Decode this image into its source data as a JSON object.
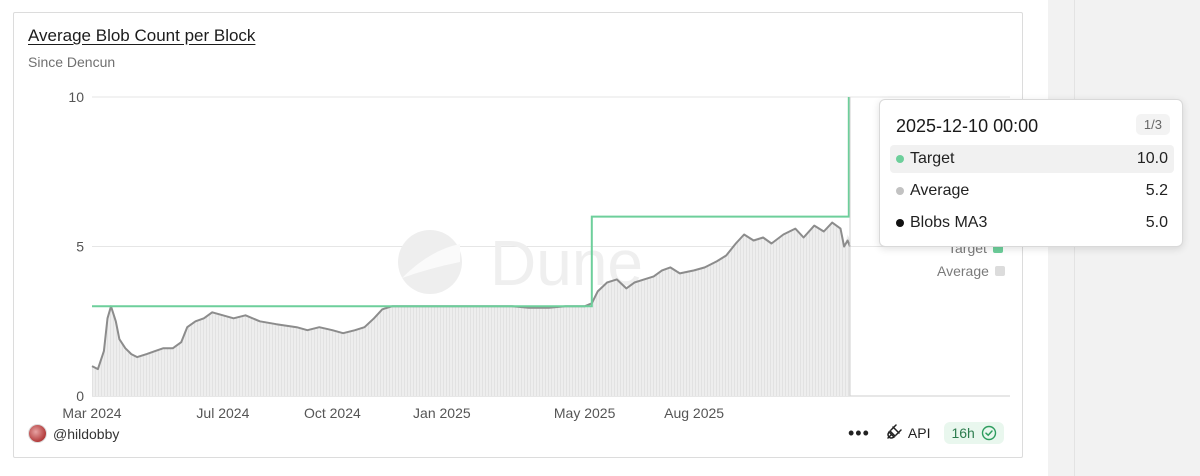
{
  "card": {
    "title": "Average Blob Count per Block",
    "subtitle": "Since Dencun",
    "watermark": "Dune"
  },
  "footer": {
    "username": "@hildobby",
    "more_label": "•••",
    "api_label": "API",
    "refresh_label": "16h"
  },
  "legend": {
    "items": [
      {
        "label": "Target",
        "color": "#6dcf9b"
      },
      {
        "label": "Average",
        "color": "#dcdcdc"
      }
    ]
  },
  "tooltip": {
    "date": "2025-12-10 00:00",
    "page": "1/3",
    "rows": [
      {
        "label": "Target",
        "value": "10.0",
        "color": "#6dcf9b"
      },
      {
        "label": "Average",
        "value": "5.2",
        "color": "#c2c2c2"
      },
      {
        "label": "Blobs MA3",
        "value": "5.0",
        "color": "#111111"
      }
    ]
  },
  "colors": {
    "target": "#6dcf9b",
    "average": "#d4d4d4",
    "ma3": "#8c8c8c"
  },
  "chart_data": {
    "type": "line",
    "title": "Average Blob Count per Block",
    "subtitle": "Since Dencun",
    "xlim": [
      "2024-03-13",
      "2025-12-10"
    ],
    "ylim": [
      0,
      10
    ],
    "y_ticks": [
      0,
      5,
      10
    ],
    "x_ticks": [
      {
        "date": "2024-03-01",
        "label": "Mar 2024"
      },
      {
        "date": "2024-07-01",
        "label": "Jul 2024"
      },
      {
        "date": "2024-10-01",
        "label": "Oct 2024"
      },
      {
        "date": "2025-01-01",
        "label": "Jan 2025"
      },
      {
        "date": "2025-05-01",
        "label": "May 2025"
      },
      {
        "date": "2025-08-01",
        "label": "Aug 2025"
      }
    ],
    "grid": true,
    "legend_position": "right",
    "series": [
      {
        "name": "Target",
        "style": "step",
        "points": [
          [
            "2024-03-13",
            3
          ],
          [
            "2025-05-07",
            3
          ],
          [
            "2025-05-07",
            6
          ],
          [
            "2025-12-09",
            6
          ],
          [
            "2025-12-09",
            10
          ]
        ]
      },
      {
        "name": "Average",
        "style": "area",
        "points": [
          [
            "2024-03-13",
            1.0
          ],
          [
            "2024-03-18",
            0.9
          ],
          [
            "2024-03-23",
            1.5
          ],
          [
            "2024-03-26",
            2.6
          ],
          [
            "2024-03-29",
            3.0
          ],
          [
            "2024-04-02",
            2.5
          ],
          [
            "2024-04-05",
            1.9
          ],
          [
            "2024-04-10",
            1.6
          ],
          [
            "2024-04-15",
            1.4
          ],
          [
            "2024-04-20",
            1.3
          ],
          [
            "2024-04-28",
            1.4
          ],
          [
            "2024-05-05",
            1.5
          ],
          [
            "2024-05-12",
            1.6
          ],
          [
            "2024-05-20",
            1.6
          ],
          [
            "2024-05-27",
            1.8
          ],
          [
            "2024-06-01",
            2.3
          ],
          [
            "2024-06-08",
            2.5
          ],
          [
            "2024-06-15",
            2.6
          ],
          [
            "2024-06-22",
            2.8
          ],
          [
            "2024-07-01",
            2.7
          ],
          [
            "2024-07-10",
            2.6
          ],
          [
            "2024-07-20",
            2.7
          ],
          [
            "2024-08-01",
            2.5
          ],
          [
            "2024-08-15",
            2.4
          ],
          [
            "2024-09-01",
            2.3
          ],
          [
            "2024-09-10",
            2.2
          ],
          [
            "2024-09-20",
            2.3
          ],
          [
            "2024-10-01",
            2.2
          ],
          [
            "2024-10-10",
            2.1
          ],
          [
            "2024-10-20",
            2.2
          ],
          [
            "2024-10-28",
            2.3
          ],
          [
            "2024-11-05",
            2.6
          ],
          [
            "2024-11-12",
            2.9
          ],
          [
            "2024-11-20",
            3.0
          ],
          [
            "2024-12-01",
            3.0
          ],
          [
            "2024-12-15",
            3.0
          ],
          [
            "2025-01-01",
            3.0
          ],
          [
            "2025-01-15",
            3.0
          ],
          [
            "2025-02-01",
            3.0
          ],
          [
            "2025-02-15",
            3.0
          ],
          [
            "2025-03-01",
            3.0
          ],
          [
            "2025-03-15",
            2.95
          ],
          [
            "2025-04-01",
            2.95
          ],
          [
            "2025-04-15",
            3.0
          ],
          [
            "2025-05-01",
            3.0
          ],
          [
            "2025-05-07",
            3.1
          ],
          [
            "2025-05-12",
            3.5
          ],
          [
            "2025-05-20",
            3.8
          ],
          [
            "2025-05-28",
            3.9
          ],
          [
            "2025-06-05",
            3.6
          ],
          [
            "2025-06-12",
            3.8
          ],
          [
            "2025-06-20",
            3.9
          ],
          [
            "2025-06-28",
            4.0
          ],
          [
            "2025-07-05",
            4.2
          ],
          [
            "2025-07-12",
            4.3
          ],
          [
            "2025-07-20",
            4.1
          ],
          [
            "2025-08-01",
            4.2
          ],
          [
            "2025-08-10",
            4.3
          ],
          [
            "2025-08-20",
            4.5
          ],
          [
            "2025-08-28",
            4.7
          ],
          [
            "2025-09-05",
            5.1
          ],
          [
            "2025-09-12",
            5.4
          ],
          [
            "2025-09-20",
            5.2
          ],
          [
            "2025-09-28",
            5.3
          ],
          [
            "2025-10-05",
            5.1
          ],
          [
            "2025-10-15",
            5.4
          ],
          [
            "2025-10-25",
            5.6
          ],
          [
            "2025-11-01",
            5.3
          ],
          [
            "2025-11-10",
            5.7
          ],
          [
            "2025-11-18",
            5.5
          ],
          [
            "2025-11-25",
            5.8
          ],
          [
            "2025-12-02",
            5.6
          ],
          [
            "2025-12-05",
            5.0
          ],
          [
            "2025-12-08",
            5.4
          ],
          [
            "2025-12-10",
            5.2
          ]
        ]
      },
      {
        "name": "Blobs MA3",
        "style": "line",
        "points": [
          [
            "2024-03-13",
            1.0
          ],
          [
            "2024-03-18",
            0.9
          ],
          [
            "2024-03-23",
            1.5
          ],
          [
            "2024-03-26",
            2.6
          ],
          [
            "2024-03-29",
            3.0
          ],
          [
            "2024-04-02",
            2.5
          ],
          [
            "2024-04-05",
            1.9
          ],
          [
            "2024-04-10",
            1.6
          ],
          [
            "2024-04-15",
            1.4
          ],
          [
            "2024-04-20",
            1.3
          ],
          [
            "2024-04-28",
            1.4
          ],
          [
            "2024-05-05",
            1.5
          ],
          [
            "2024-05-12",
            1.6
          ],
          [
            "2024-05-20",
            1.6
          ],
          [
            "2024-05-27",
            1.8
          ],
          [
            "2024-06-01",
            2.3
          ],
          [
            "2024-06-08",
            2.5
          ],
          [
            "2024-06-15",
            2.6
          ],
          [
            "2024-06-22",
            2.8
          ],
          [
            "2024-07-01",
            2.7
          ],
          [
            "2024-07-10",
            2.6
          ],
          [
            "2024-07-20",
            2.7
          ],
          [
            "2024-08-01",
            2.5
          ],
          [
            "2024-08-15",
            2.4
          ],
          [
            "2024-09-01",
            2.3
          ],
          [
            "2024-09-10",
            2.2
          ],
          [
            "2024-09-20",
            2.3
          ],
          [
            "2024-10-01",
            2.2
          ],
          [
            "2024-10-10",
            2.1
          ],
          [
            "2024-10-20",
            2.2
          ],
          [
            "2024-10-28",
            2.3
          ],
          [
            "2024-11-05",
            2.6
          ],
          [
            "2024-11-12",
            2.9
          ],
          [
            "2024-11-20",
            3.0
          ],
          [
            "2024-12-01",
            3.0
          ],
          [
            "2024-12-15",
            3.0
          ],
          [
            "2025-01-01",
            3.0
          ],
          [
            "2025-01-15",
            3.0
          ],
          [
            "2025-02-01",
            3.0
          ],
          [
            "2025-02-15",
            3.0
          ],
          [
            "2025-03-01",
            3.0
          ],
          [
            "2025-03-15",
            2.95
          ],
          [
            "2025-04-01",
            2.95
          ],
          [
            "2025-04-15",
            3.0
          ],
          [
            "2025-05-01",
            3.0
          ],
          [
            "2025-05-07",
            3.1
          ],
          [
            "2025-05-12",
            3.5
          ],
          [
            "2025-05-20",
            3.8
          ],
          [
            "2025-05-28",
            3.9
          ],
          [
            "2025-06-05",
            3.6
          ],
          [
            "2025-06-12",
            3.8
          ],
          [
            "2025-06-20",
            3.9
          ],
          [
            "2025-06-28",
            4.0
          ],
          [
            "2025-07-05",
            4.2
          ],
          [
            "2025-07-12",
            4.3
          ],
          [
            "2025-07-20",
            4.1
          ],
          [
            "2025-08-01",
            4.2
          ],
          [
            "2025-08-10",
            4.3
          ],
          [
            "2025-08-20",
            4.5
          ],
          [
            "2025-08-28",
            4.7
          ],
          [
            "2025-09-05",
            5.1
          ],
          [
            "2025-09-12",
            5.4
          ],
          [
            "2025-09-20",
            5.2
          ],
          [
            "2025-09-28",
            5.3
          ],
          [
            "2025-10-05",
            5.1
          ],
          [
            "2025-10-15",
            5.4
          ],
          [
            "2025-10-25",
            5.6
          ],
          [
            "2025-11-01",
            5.3
          ],
          [
            "2025-11-10",
            5.7
          ],
          [
            "2025-11-18",
            5.5
          ],
          [
            "2025-11-25",
            5.8
          ],
          [
            "2025-12-02",
            5.6
          ],
          [
            "2025-12-05",
            5.0
          ],
          [
            "2025-12-08",
            5.2
          ],
          [
            "2025-12-10",
            5.0
          ]
        ]
      }
    ]
  }
}
